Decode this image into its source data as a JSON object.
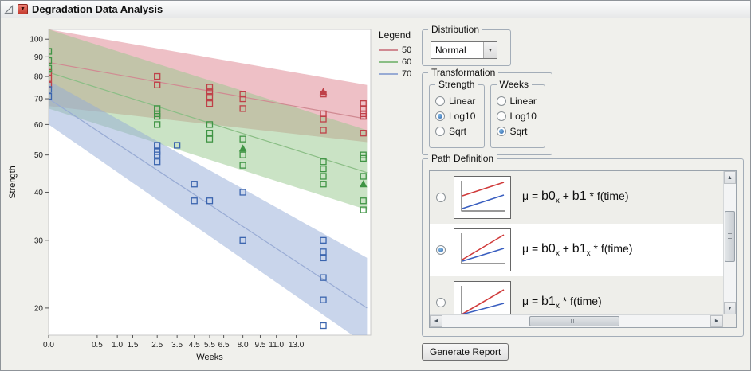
{
  "window": {
    "title": "Degradation Data Analysis"
  },
  "icons": {
    "disclosure": "open-report-triangle",
    "red_triangle": "▼",
    "dropdown": "▼",
    "scroll_up": "▲",
    "scroll_down": "▼",
    "scroll_left": "◄",
    "scroll_right": "►"
  },
  "legend": {
    "title": "Legend",
    "entries": [
      {
        "label": "50",
        "color": "#d08a92"
      },
      {
        "label": "60",
        "color": "#8abe85"
      },
      {
        "label": "70",
        "color": "#98abd4"
      }
    ]
  },
  "controls": {
    "distribution": {
      "title": "Distribution",
      "value": "Normal"
    },
    "transformation": {
      "title": "Transformation",
      "groups": [
        {
          "title": "Strength",
          "options": [
            "Linear",
            "Log10",
            "Sqrt"
          ],
          "selected": 1
        },
        {
          "title": "Weeks",
          "options": [
            "Linear",
            "Log10",
            "Sqrt"
          ],
          "selected": 2
        }
      ]
    },
    "path_definition": {
      "title": "Path Definition",
      "selected": 1,
      "mu": "μ =  ",
      "options": [
        {
          "thumb": "parallel",
          "terms": [
            {
              "t": "b0",
              "sub": "x",
              "coef": true
            },
            {
              "t": " + "
            },
            {
              "t": "b1",
              "coef": true
            },
            {
              "t": " * f(time)"
            }
          ]
        },
        {
          "thumb": "diverge",
          "terms": [
            {
              "t": "b0",
              "sub": "x",
              "coef": true
            },
            {
              "t": " + "
            },
            {
              "t": "b1",
              "sub": "x",
              "coef": true
            },
            {
              "t": " * f(time)"
            }
          ]
        },
        {
          "thumb": "fan",
          "terms": [
            {
              "t": "b1",
              "sub": "x",
              "coef": true
            },
            {
              "t": " * f(time)"
            }
          ]
        }
      ]
    },
    "generate_report": "Generate Report"
  },
  "chart_data": {
    "type": "scatter",
    "xlabel": "Weeks",
    "ylabel": "Strength",
    "x_scale": "sqrt",
    "y_scale": "log10",
    "xlim": [
      0,
      22
    ],
    "ylim": [
      17,
      106
    ],
    "x_ticks": [
      0,
      0.5,
      1,
      1.5,
      2.5,
      3.5,
      4.5,
      5.5,
      6.5,
      8,
      9.5,
      11,
      13
    ],
    "x_tick_labels": [
      "0.0",
      "0.5",
      "1.0",
      "1.5",
      "2.5",
      "3.5",
      "4.5",
      "5.5",
      "6.5",
      "8.0",
      "9.5",
      "11.0",
      "13.0"
    ],
    "y_ticks": [
      20,
      30,
      40,
      50,
      60,
      70,
      80,
      90,
      100
    ],
    "frame_color": "#c9c9c9",
    "grid": false,
    "legend_position": "top-right-outside",
    "series": [
      {
        "name": "50",
        "color": "#bf4048",
        "line_color": "#d08a92",
        "band_color": "rgba(221,130,141,0.50)",
        "line": [
          [
            0,
            87
          ],
          [
            21.5,
            62
          ]
        ],
        "band": [
          [
            0,
            67,
            106
          ],
          [
            21.5,
            54,
            76
          ]
        ],
        "points": [
          [
            0,
            82
          ],
          [
            0,
            79
          ],
          [
            0,
            76
          ],
          [
            2.5,
            80
          ],
          [
            2.5,
            76
          ],
          [
            5.5,
            75
          ],
          [
            5.5,
            73
          ],
          [
            5.5,
            71
          ],
          [
            5.5,
            68
          ],
          [
            8,
            72
          ],
          [
            8,
            70
          ],
          [
            8,
            66
          ],
          [
            16,
            73,
            1
          ],
          [
            16,
            72
          ],
          [
            16,
            64
          ],
          [
            16,
            62
          ],
          [
            16,
            58
          ],
          [
            21,
            68
          ],
          [
            21,
            66
          ],
          [
            21,
            64
          ],
          [
            21,
            63
          ],
          [
            21,
            57
          ]
        ]
      },
      {
        "name": "60",
        "color": "#3f9444",
        "line_color": "#8abe85",
        "band_color": "rgba(150,200,140,0.50)",
        "line": [
          [
            0,
            82
          ],
          [
            21.5,
            45
          ]
        ],
        "band": [
          [
            0,
            66,
            106
          ],
          [
            21.5,
            36,
            58
          ]
        ],
        "points": [
          [
            0,
            93
          ],
          [
            0,
            88
          ],
          [
            0,
            84
          ],
          [
            2.5,
            66
          ],
          [
            2.5,
            64
          ],
          [
            2.5,
            63
          ],
          [
            2.5,
            60
          ],
          [
            5.5,
            60
          ],
          [
            5.5,
            57
          ],
          [
            5.5,
            55
          ],
          [
            8,
            55
          ],
          [
            8,
            52,
            1
          ],
          [
            8,
            50
          ],
          [
            8,
            47
          ],
          [
            16,
            48
          ],
          [
            16,
            46
          ],
          [
            16,
            44
          ],
          [
            16,
            42
          ],
          [
            21,
            50
          ],
          [
            21,
            49
          ],
          [
            21,
            44
          ],
          [
            21,
            42,
            1
          ],
          [
            21,
            38
          ],
          [
            21,
            36
          ]
        ]
      },
      {
        "name": "70",
        "color": "#3a64ae",
        "line_color": "#98abd4",
        "band_color": "rgba(148,172,216,0.50)",
        "line": [
          [
            0,
            70
          ],
          [
            21.5,
            20
          ]
        ],
        "band": [
          [
            0,
            60,
            78
          ],
          [
            21.5,
            16,
            27
          ]
        ],
        "points": [
          [
            0,
            74
          ],
          [
            0,
            71
          ],
          [
            2.5,
            53
          ],
          [
            2.5,
            51
          ],
          [
            2.5,
            50
          ],
          [
            2.5,
            48
          ],
          [
            3.5,
            53
          ],
          [
            4.5,
            42
          ],
          [
            4.5,
            38
          ],
          [
            5.5,
            38
          ],
          [
            8,
            40
          ],
          [
            8,
            30
          ],
          [
            16,
            30
          ],
          [
            16,
            28
          ],
          [
            16,
            27
          ],
          [
            16,
            24
          ],
          [
            16,
            21
          ],
          [
            16,
            18
          ]
        ]
      }
    ]
  }
}
